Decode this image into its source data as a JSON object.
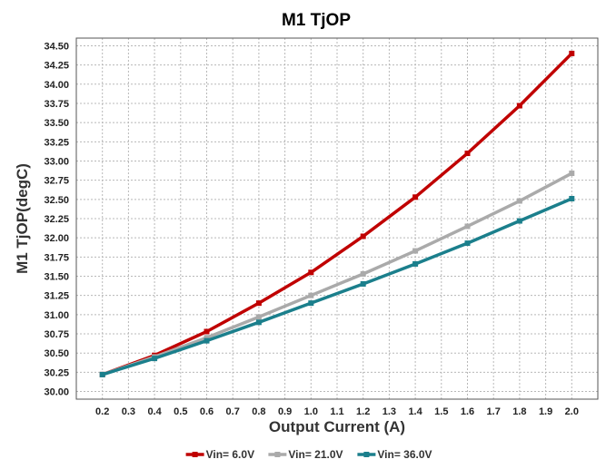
{
  "chart_data": {
    "type": "line",
    "title": "M1 TjOP",
    "xlabel": "Output Current (A)",
    "ylabel": "M1 TjOP(degC)",
    "x": [
      0.2,
      0.4,
      0.6,
      0.8,
      1.0,
      1.2,
      1.4,
      1.6,
      1.8,
      2.0
    ],
    "x_ticks": [
      "0.2",
      "0.3",
      "0.4",
      "0.5",
      "0.6",
      "0.7",
      "0.8",
      "0.9",
      "1.0",
      "1.1",
      "1.2",
      "1.3",
      "1.4",
      "1.5",
      "1.6",
      "1.7",
      "1.8",
      "1.9",
      "2.0"
    ],
    "y_ticks": [
      "30.00",
      "30.25",
      "30.50",
      "30.75",
      "31.00",
      "31.25",
      "31.50",
      "31.75",
      "32.00",
      "32.25",
      "32.50",
      "32.75",
      "33.00",
      "33.25",
      "33.50",
      "33.75",
      "34.00",
      "34.25",
      "34.50"
    ],
    "xlim": [
      0.1,
      2.1
    ],
    "ylim": [
      29.9,
      34.6
    ],
    "grid": true,
    "legend_position": "bottom",
    "series": [
      {
        "name": "Vin= 6.0V",
        "color": "#c00000",
        "values": [
          30.22,
          30.47,
          30.78,
          31.15,
          31.55,
          32.02,
          32.53,
          33.1,
          33.72,
          34.4
        ]
      },
      {
        "name": "Vin= 21.0V",
        "color": "#aaaaaa",
        "values": [
          30.22,
          30.45,
          30.7,
          30.97,
          31.25,
          31.53,
          31.83,
          32.15,
          32.48,
          32.84
        ]
      },
      {
        "name": "Vin= 36.0V",
        "color": "#1b7f8c",
        "values": [
          30.22,
          30.43,
          30.66,
          30.9,
          31.15,
          31.4,
          31.66,
          31.93,
          32.22,
          32.51
        ]
      }
    ]
  }
}
